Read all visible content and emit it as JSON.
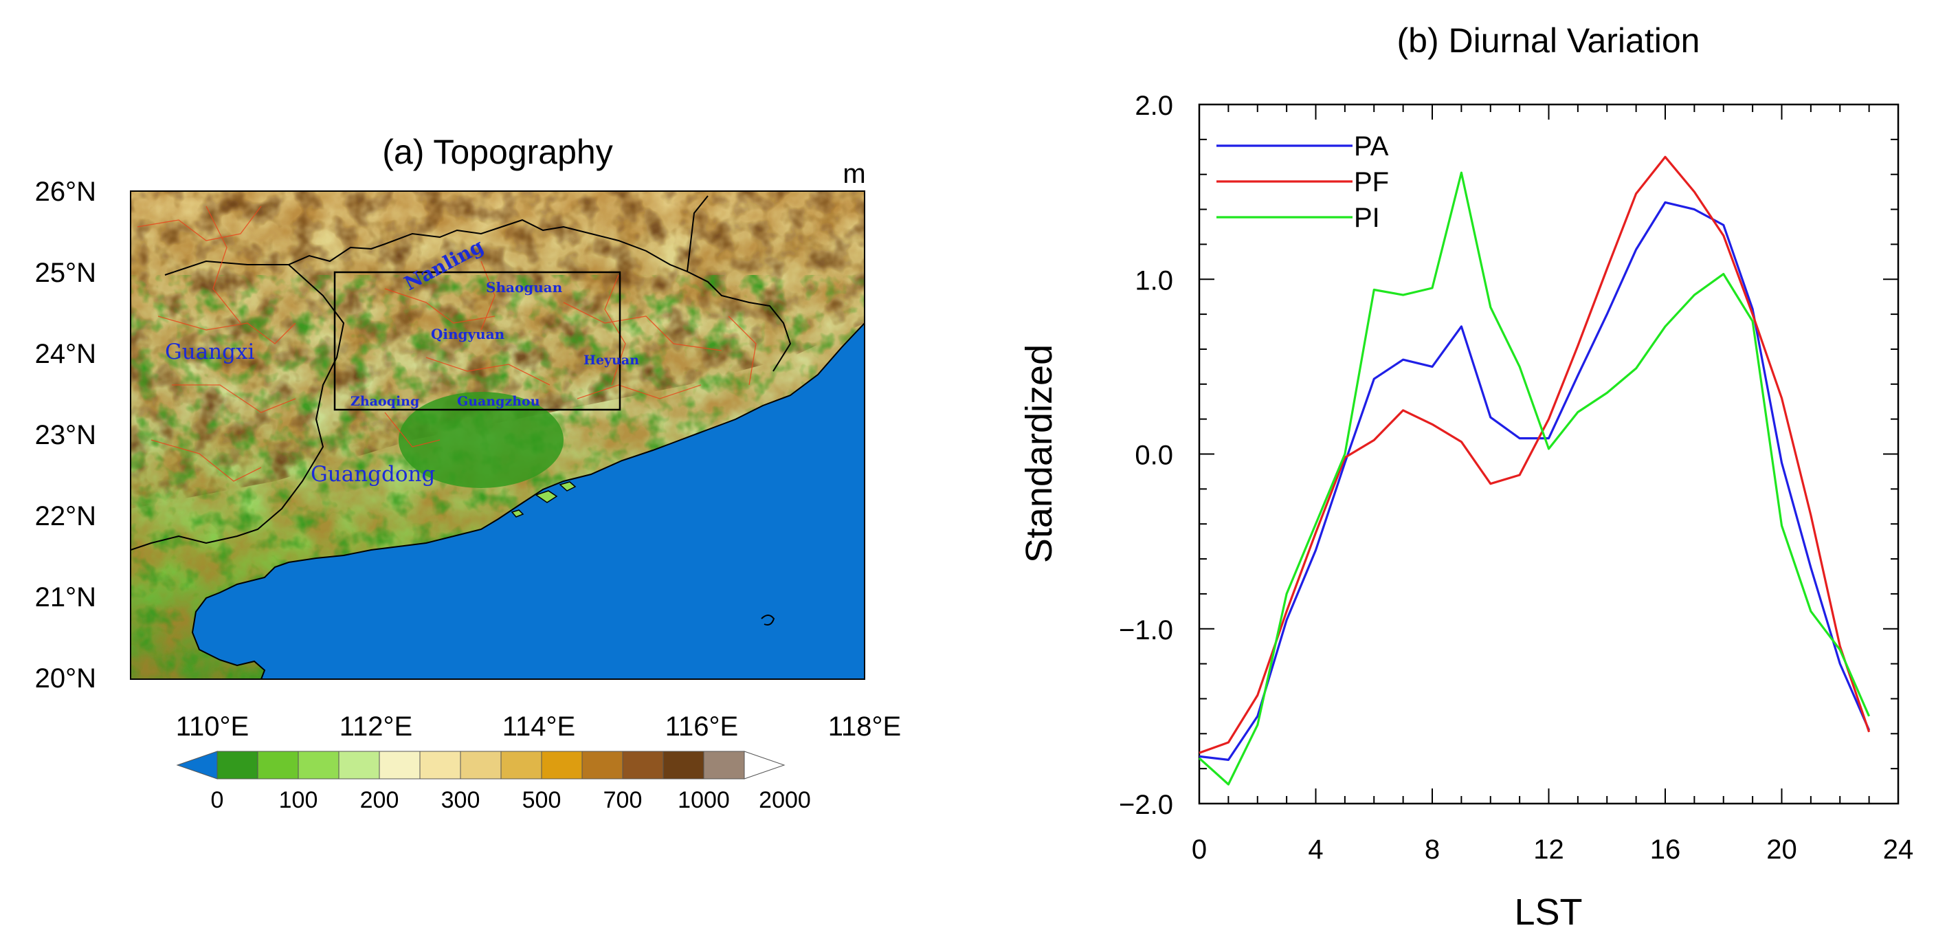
{
  "colors": {
    "PA": "#1f1fe6",
    "PF": "#e61f1f",
    "PI": "#1fe61f",
    "sea": "#0a74d1",
    "label": "#1b2bd8"
  },
  "map_panel": {
    "title": "(a) Topography",
    "unit": "m",
    "lat_ticks": [
      "26°N",
      "25°N",
      "24°N",
      "23°N",
      "22°N",
      "21°N",
      "20°N"
    ],
    "lon_ticks": [
      "110°E",
      "112°E",
      "114°E",
      "116°E",
      "118°E"
    ],
    "colorbar_labels": [
      "0",
      "100",
      "200",
      "300",
      "500",
      "700",
      "1000",
      "2000"
    ],
    "colorbar_colors": [
      "#339a1d",
      "#6dc72d",
      "#93dc52",
      "#c2ec8f",
      "#f6f2c2",
      "#f5e4a4",
      "#ebd080",
      "#e0b648",
      "#dd9d10",
      "#b6771f",
      "#8f5520",
      "#6b3f15",
      "#9b8574"
    ],
    "places": {
      "nanling": "Nanling",
      "shaoguan": "Shaoguan",
      "qingyuan": "Qingyuan",
      "heyuan": "Heyuan",
      "zhaoqing": "Zhaoqing",
      "guangzhou": "Guangzhou",
      "guangxi": "Guangxi",
      "guangdong": "Guangdong"
    }
  },
  "chart_data": {
    "type": "line",
    "title": "(b) Diurnal Variation",
    "xlabel": "LST",
    "ylabel": "Standardized",
    "xlim": [
      0,
      24
    ],
    "ylim": [
      -2.0,
      2.0
    ],
    "x_ticks": [
      "0",
      "4",
      "8",
      "12",
      "16",
      "20",
      "24"
    ],
    "y_ticks": [
      "2.0",
      "1.0",
      "0.0",
      "−1.0",
      "−2.0"
    ],
    "x": [
      0,
      1,
      2,
      3,
      4,
      5,
      6,
      7,
      8,
      9,
      10,
      11,
      12,
      13,
      14,
      15,
      16,
      17,
      18,
      19,
      20,
      21,
      22,
      23
    ],
    "legend_position": "top-left",
    "series": [
      {
        "name": "PA",
        "color": "#1f1fe6",
        "values": [
          -1.73,
          -1.75,
          -1.5,
          -0.95,
          -0.55,
          -0.05,
          0.43,
          0.54,
          0.5,
          0.73,
          0.21,
          0.09,
          0.09,
          0.45,
          0.8,
          1.17,
          1.44,
          1.4,
          1.31,
          0.83,
          -0.05,
          -0.65,
          -1.2,
          -1.58
        ]
      },
      {
        "name": "PF",
        "color": "#e61f1f",
        "values": [
          -1.71,
          -1.65,
          -1.38,
          -0.9,
          -0.45,
          -0.02,
          0.08,
          0.25,
          0.17,
          0.07,
          -0.17,
          -0.12,
          0.2,
          0.62,
          1.06,
          1.49,
          1.7,
          1.5,
          1.25,
          0.8,
          0.32,
          -0.35,
          -1.1,
          -1.59
        ]
      },
      {
        "name": "PI",
        "color": "#1fe61f",
        "values": [
          -1.74,
          -1.89,
          -1.55,
          -0.8,
          -0.4,
          0.0,
          0.94,
          0.91,
          0.95,
          1.61,
          0.84,
          0.5,
          0.03,
          0.24,
          0.35,
          0.49,
          0.73,
          0.91,
          1.03,
          0.76,
          -0.41,
          -0.9,
          -1.12,
          -1.5
        ]
      }
    ]
  }
}
